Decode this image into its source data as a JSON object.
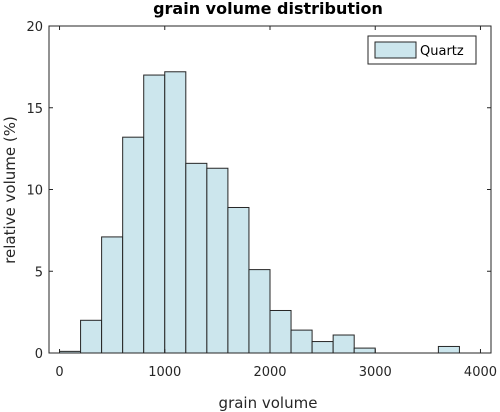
{
  "chart_data": {
    "type": "bar",
    "title": "grain volume distribution",
    "xlabel": "grain volume",
    "ylabel": "relative volume (%)",
    "xlim": [
      -100,
      4100
    ],
    "ylim": [
      0,
      20
    ],
    "xticks": [
      0,
      1000,
      2000,
      3000,
      4000
    ],
    "yticks": [
      0,
      5,
      10,
      15,
      20
    ],
    "bin_width": 200,
    "bars": [
      {
        "x0": 0,
        "x1": 200,
        "value": 0.1
      },
      {
        "x0": 200,
        "x1": 400,
        "value": 2.0
      },
      {
        "x0": 400,
        "x1": 600,
        "value": 7.1
      },
      {
        "x0": 600,
        "x1": 800,
        "value": 13.2
      },
      {
        "x0": 800,
        "x1": 1000,
        "value": 17.0
      },
      {
        "x0": 1000,
        "x1": 1200,
        "value": 17.2
      },
      {
        "x0": 1200,
        "x1": 1400,
        "value": 11.6
      },
      {
        "x0": 1400,
        "x1": 1600,
        "value": 11.3
      },
      {
        "x0": 1600,
        "x1": 1800,
        "value": 8.9
      },
      {
        "x0": 1800,
        "x1": 2000,
        "value": 5.1
      },
      {
        "x0": 2000,
        "x1": 2200,
        "value": 2.6
      },
      {
        "x0": 2200,
        "x1": 2400,
        "value": 1.4
      },
      {
        "x0": 2400,
        "x1": 2600,
        "value": 0.7
      },
      {
        "x0": 2600,
        "x1": 2800,
        "value": 1.1
      },
      {
        "x0": 2800,
        "x1": 3000,
        "value": 0.3
      },
      {
        "x0": 3000,
        "x1": 3200,
        "value": 0.0
      },
      {
        "x0": 3200,
        "x1": 3400,
        "value": 0.0
      },
      {
        "x0": 3400,
        "x1": 3600,
        "value": 0.0
      },
      {
        "x0": 3600,
        "x1": 3800,
        "value": 0.4
      }
    ],
    "series": [
      {
        "name": "Quartz",
        "color": "#cce6ed",
        "edge_color": "#262626"
      }
    ],
    "legend": "top-right",
    "grid": false
  }
}
